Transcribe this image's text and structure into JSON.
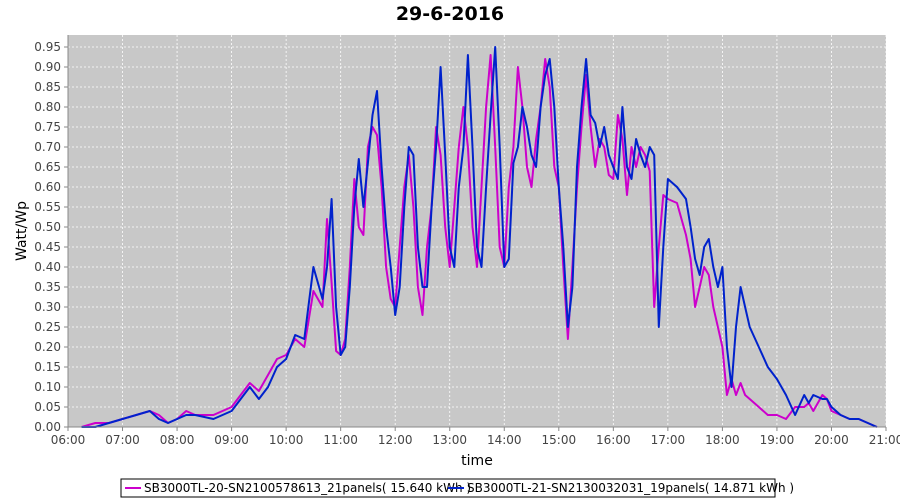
{
  "chart_data": {
    "type": "line",
    "title": "29-6-2016",
    "xlabel": "time",
    "ylabel": "Watt/Wp",
    "xlim": [
      "06:00",
      "21:00"
    ],
    "ylim": [
      0,
      0.98
    ],
    "x_ticks": [
      "06:00",
      "07:00",
      "08:00",
      "09:00",
      "10:00",
      "11:00",
      "12:00",
      "13:00",
      "14:00",
      "15:00",
      "16:00",
      "17:00",
      "18:00",
      "19:00",
      "20:00",
      "21:00"
    ],
    "y_ticks": [
      "0.00",
      "0.05",
      "0.10",
      "0.15",
      "0.20",
      "0.25",
      "0.30",
      "0.35",
      "0.40",
      "0.45",
      "0.50",
      "0.55",
      "0.60",
      "0.65",
      "0.70",
      "0.75",
      "0.80",
      "0.85",
      "0.90",
      "0.95"
    ],
    "grid": true,
    "legend_position": "bottom",
    "colors": {
      "plot_background": "#c8c8c8",
      "grid": "#ffffff"
    },
    "series": [
      {
        "name": "SB3000TL-20-SN2100578613_21panels( 15.640 kWh )",
        "color": "#cc00cc",
        "points": [
          [
            "06:15",
            0.0
          ],
          [
            "06:30",
            0.01
          ],
          [
            "06:45",
            0.01
          ],
          [
            "07:00",
            0.02
          ],
          [
            "07:15",
            0.03
          ],
          [
            "07:30",
            0.04
          ],
          [
            "07:40",
            0.03
          ],
          [
            "07:50",
            0.01
          ],
          [
            "08:00",
            0.02
          ],
          [
            "08:10",
            0.04
          ],
          [
            "08:20",
            0.03
          ],
          [
            "08:40",
            0.03
          ],
          [
            "09:00",
            0.05
          ],
          [
            "09:10",
            0.08
          ],
          [
            "09:20",
            0.11
          ],
          [
            "09:30",
            0.09
          ],
          [
            "09:40",
            0.13
          ],
          [
            "09:50",
            0.17
          ],
          [
            "10:00",
            0.18
          ],
          [
            "10:10",
            0.22
          ],
          [
            "10:20",
            0.2
          ],
          [
            "10:30",
            0.34
          ],
          [
            "10:40",
            0.3
          ],
          [
            "10:45",
            0.52
          ],
          [
            "10:50",
            0.36
          ],
          [
            "10:55",
            0.19
          ],
          [
            "11:00",
            0.18
          ],
          [
            "11:05",
            0.22
          ],
          [
            "11:10",
            0.4
          ],
          [
            "11:15",
            0.62
          ],
          [
            "11:20",
            0.5
          ],
          [
            "11:25",
            0.48
          ],
          [
            "11:30",
            0.7
          ],
          [
            "11:35",
            0.75
          ],
          [
            "11:40",
            0.73
          ],
          [
            "11:45",
            0.6
          ],
          [
            "11:50",
            0.4
          ],
          [
            "11:55",
            0.32
          ],
          [
            "12:00",
            0.3
          ],
          [
            "12:05",
            0.45
          ],
          [
            "12:10",
            0.6
          ],
          [
            "12:15",
            0.68
          ],
          [
            "12:20",
            0.55
          ],
          [
            "12:25",
            0.35
          ],
          [
            "12:30",
            0.28
          ],
          [
            "12:35",
            0.45
          ],
          [
            "12:40",
            0.55
          ],
          [
            "12:45",
            0.75
          ],
          [
            "12:50",
            0.68
          ],
          [
            "12:55",
            0.5
          ],
          [
            "13:00",
            0.4
          ],
          [
            "13:05",
            0.55
          ],
          [
            "13:10",
            0.7
          ],
          [
            "13:15",
            0.8
          ],
          [
            "13:20",
            0.7
          ],
          [
            "13:25",
            0.5
          ],
          [
            "13:30",
            0.4
          ],
          [
            "13:35",
            0.6
          ],
          [
            "13:40",
            0.8
          ],
          [
            "13:45",
            0.93
          ],
          [
            "13:50",
            0.7
          ],
          [
            "13:55",
            0.45
          ],
          [
            "14:00",
            0.4
          ],
          [
            "14:05",
            0.6
          ],
          [
            "14:10",
            0.7
          ],
          [
            "14:15",
            0.9
          ],
          [
            "14:20",
            0.8
          ],
          [
            "14:25",
            0.65
          ],
          [
            "14:30",
            0.6
          ],
          [
            "14:35",
            0.72
          ],
          [
            "14:40",
            0.8
          ],
          [
            "14:45",
            0.92
          ],
          [
            "14:50",
            0.85
          ],
          [
            "14:55",
            0.65
          ],
          [
            "15:00",
            0.6
          ],
          [
            "15:05",
            0.4
          ],
          [
            "15:10",
            0.22
          ],
          [
            "15:15",
            0.4
          ],
          [
            "15:20",
            0.6
          ],
          [
            "15:25",
            0.75
          ],
          [
            "15:30",
            0.88
          ],
          [
            "15:35",
            0.75
          ],
          [
            "15:40",
            0.65
          ],
          [
            "15:45",
            0.72
          ],
          [
            "15:50",
            0.7
          ],
          [
            "15:55",
            0.63
          ],
          [
            "16:00",
            0.62
          ],
          [
            "16:05",
            0.78
          ],
          [
            "16:10",
            0.72
          ],
          [
            "16:15",
            0.58
          ],
          [
            "16:20",
            0.7
          ],
          [
            "16:25",
            0.65
          ],
          [
            "16:30",
            0.7
          ],
          [
            "16:35",
            0.68
          ],
          [
            "16:40",
            0.64
          ],
          [
            "16:45",
            0.3
          ],
          [
            "16:50",
            0.45
          ],
          [
            "16:55",
            0.58
          ],
          [
            "17:00",
            0.57
          ],
          [
            "17:10",
            0.56
          ],
          [
            "17:20",
            0.48
          ],
          [
            "17:25",
            0.42
          ],
          [
            "17:30",
            0.3
          ],
          [
            "17:35",
            0.35
          ],
          [
            "17:40",
            0.4
          ],
          [
            "17:45",
            0.38
          ],
          [
            "17:50",
            0.3
          ],
          [
            "17:55",
            0.25
          ],
          [
            "18:00",
            0.2
          ],
          [
            "18:05",
            0.08
          ],
          [
            "18:10",
            0.12
          ],
          [
            "18:15",
            0.08
          ],
          [
            "18:20",
            0.11
          ],
          [
            "18:25",
            0.08
          ],
          [
            "18:30",
            0.07
          ],
          [
            "18:40",
            0.05
          ],
          [
            "18:50",
            0.03
          ],
          [
            "19:00",
            0.03
          ],
          [
            "19:10",
            0.02
          ],
          [
            "19:20",
            0.05
          ],
          [
            "19:30",
            0.05
          ],
          [
            "19:35",
            0.06
          ],
          [
            "19:40",
            0.04
          ],
          [
            "19:50",
            0.08
          ],
          [
            "19:55",
            0.07
          ],
          [
            "20:00",
            0.04
          ],
          [
            "20:10",
            0.03
          ],
          [
            "20:20",
            0.02
          ],
          [
            "20:30",
            0.02
          ],
          [
            "20:40",
            0.01
          ],
          [
            "20:50",
            0.0
          ]
        ]
      },
      {
        "name": "SB3000TL-21-SN2130032031_19panels( 14.871 kWh )",
        "color": "#0022cc",
        "points": [
          [
            "06:15",
            0.0
          ],
          [
            "06:30",
            0.0
          ],
          [
            "06:45",
            0.01
          ],
          [
            "07:00",
            0.02
          ],
          [
            "07:15",
            0.03
          ],
          [
            "07:30",
            0.04
          ],
          [
            "07:40",
            0.02
          ],
          [
            "07:50",
            0.01
          ],
          [
            "08:00",
            0.02
          ],
          [
            "08:10",
            0.03
          ],
          [
            "08:20",
            0.03
          ],
          [
            "08:40",
            0.02
          ],
          [
            "09:00",
            0.04
          ],
          [
            "09:10",
            0.07
          ],
          [
            "09:20",
            0.1
          ],
          [
            "09:30",
            0.07
          ],
          [
            "09:40",
            0.1
          ],
          [
            "09:50",
            0.15
          ],
          [
            "10:00",
            0.17
          ],
          [
            "10:10",
            0.23
          ],
          [
            "10:20",
            0.22
          ],
          [
            "10:30",
            0.4
          ],
          [
            "10:40",
            0.32
          ],
          [
            "10:45",
            0.4
          ],
          [
            "10:50",
            0.57
          ],
          [
            "10:55",
            0.3
          ],
          [
            "11:00",
            0.18
          ],
          [
            "11:05",
            0.2
          ],
          [
            "11:10",
            0.35
          ],
          [
            "11:15",
            0.55
          ],
          [
            "11:20",
            0.67
          ],
          [
            "11:25",
            0.55
          ],
          [
            "11:30",
            0.66
          ],
          [
            "11:35",
            0.78
          ],
          [
            "11:40",
            0.84
          ],
          [
            "11:45",
            0.65
          ],
          [
            "11:50",
            0.5
          ],
          [
            "11:55",
            0.4
          ],
          [
            "12:00",
            0.28
          ],
          [
            "12:05",
            0.35
          ],
          [
            "12:10",
            0.55
          ],
          [
            "12:15",
            0.7
          ],
          [
            "12:20",
            0.68
          ],
          [
            "12:25",
            0.45
          ],
          [
            "12:30",
            0.35
          ],
          [
            "12:35",
            0.35
          ],
          [
            "12:40",
            0.55
          ],
          [
            "12:45",
            0.7
          ],
          [
            "12:50",
            0.9
          ],
          [
            "12:55",
            0.68
          ],
          [
            "13:00",
            0.45
          ],
          [
            "13:05",
            0.4
          ],
          [
            "13:10",
            0.6
          ],
          [
            "13:15",
            0.7
          ],
          [
            "13:20",
            0.93
          ],
          [
            "13:25",
            0.7
          ],
          [
            "13:30",
            0.45
          ],
          [
            "13:35",
            0.4
          ],
          [
            "13:40",
            0.6
          ],
          [
            "13:45",
            0.78
          ],
          [
            "13:50",
            0.95
          ],
          [
            "13:55",
            0.7
          ],
          [
            "14:00",
            0.4
          ],
          [
            "14:05",
            0.42
          ],
          [
            "14:10",
            0.66
          ],
          [
            "14:15",
            0.7
          ],
          [
            "14:20",
            0.8
          ],
          [
            "14:25",
            0.75
          ],
          [
            "14:30",
            0.68
          ],
          [
            "14:35",
            0.65
          ],
          [
            "14:40",
            0.8
          ],
          [
            "14:45",
            0.88
          ],
          [
            "14:50",
            0.92
          ],
          [
            "14:55",
            0.8
          ],
          [
            "15:00",
            0.6
          ],
          [
            "15:05",
            0.45
          ],
          [
            "15:10",
            0.25
          ],
          [
            "15:15",
            0.35
          ],
          [
            "15:20",
            0.65
          ],
          [
            "15:25",
            0.8
          ],
          [
            "15:30",
            0.92
          ],
          [
            "15:35",
            0.78
          ],
          [
            "15:40",
            0.76
          ],
          [
            "15:45",
            0.7
          ],
          [
            "15:50",
            0.75
          ],
          [
            "15:55",
            0.68
          ],
          [
            "16:00",
            0.65
          ],
          [
            "16:05",
            0.62
          ],
          [
            "16:10",
            0.8
          ],
          [
            "16:15",
            0.65
          ],
          [
            "16:20",
            0.62
          ],
          [
            "16:25",
            0.72
          ],
          [
            "16:30",
            0.68
          ],
          [
            "16:35",
            0.65
          ],
          [
            "16:40",
            0.7
          ],
          [
            "16:45",
            0.68
          ],
          [
            "16:50",
            0.25
          ],
          [
            "16:55",
            0.45
          ],
          [
            "17:00",
            0.62
          ],
          [
            "17:10",
            0.6
          ],
          [
            "17:20",
            0.57
          ],
          [
            "17:25",
            0.5
          ],
          [
            "17:30",
            0.42
          ],
          [
            "17:35",
            0.38
          ],
          [
            "17:40",
            0.45
          ],
          [
            "17:45",
            0.47
          ],
          [
            "17:50",
            0.4
          ],
          [
            "17:55",
            0.35
          ],
          [
            "18:00",
            0.4
          ],
          [
            "18:05",
            0.2
          ],
          [
            "18:10",
            0.1
          ],
          [
            "18:15",
            0.25
          ],
          [
            "18:20",
            0.35
          ],
          [
            "18:25",
            0.3
          ],
          [
            "18:30",
            0.25
          ],
          [
            "18:40",
            0.2
          ],
          [
            "18:50",
            0.15
          ],
          [
            "19:00",
            0.12
          ],
          [
            "19:10",
            0.08
          ],
          [
            "19:20",
            0.03
          ],
          [
            "19:30",
            0.08
          ],
          [
            "19:35",
            0.06
          ],
          [
            "19:40",
            0.08
          ],
          [
            "19:50",
            0.07
          ],
          [
            "19:55",
            0.07
          ],
          [
            "20:00",
            0.05
          ],
          [
            "20:10",
            0.03
          ],
          [
            "20:20",
            0.02
          ],
          [
            "20:30",
            0.02
          ],
          [
            "20:40",
            0.01
          ],
          [
            "20:50",
            0.0
          ]
        ]
      }
    ]
  }
}
